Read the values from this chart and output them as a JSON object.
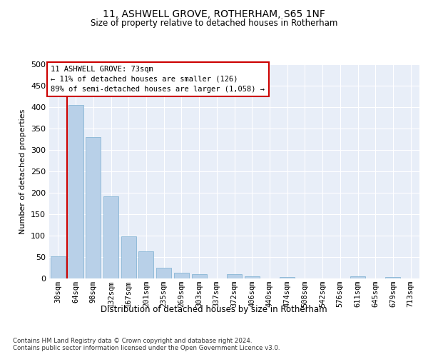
{
  "title": "11, ASHWELL GROVE, ROTHERHAM, S65 1NF",
  "subtitle": "Size of property relative to detached houses in Rotherham",
  "xlabel": "Distribution of detached houses by size in Rotherham",
  "ylabel": "Number of detached properties",
  "categories": [
    "30sqm",
    "64sqm",
    "98sqm",
    "132sqm",
    "167sqm",
    "201sqm",
    "235sqm",
    "269sqm",
    "303sqm",
    "337sqm",
    "372sqm",
    "406sqm",
    "440sqm",
    "474sqm",
    "508sqm",
    "542sqm",
    "576sqm",
    "611sqm",
    "645sqm",
    "679sqm",
    "713sqm"
  ],
  "values": [
    52,
    405,
    330,
    192,
    98,
    63,
    25,
    14,
    10,
    0,
    10,
    5,
    0,
    4,
    0,
    0,
    0,
    5,
    0,
    4,
    0
  ],
  "bar_color": "#b8d0e8",
  "bar_edge_color": "#7aaed0",
  "background_color": "#e8eef8",
  "grid_color": "#ffffff",
  "property_line_color": "#cc0000",
  "annotation_text": "11 ASHWELL GROVE: 73sqm\n← 11% of detached houses are smaller (126)\n89% of semi-detached houses are larger (1,058) →",
  "annotation_box_color": "#ffffff",
  "annotation_box_edge": "#cc0000",
  "ylim": [
    0,
    500
  ],
  "yticks": [
    0,
    50,
    100,
    150,
    200,
    250,
    300,
    350,
    400,
    450,
    500
  ],
  "footer_line1": "Contains HM Land Registry data © Crown copyright and database right 2024.",
  "footer_line2": "Contains public sector information licensed under the Open Government Licence v3.0."
}
